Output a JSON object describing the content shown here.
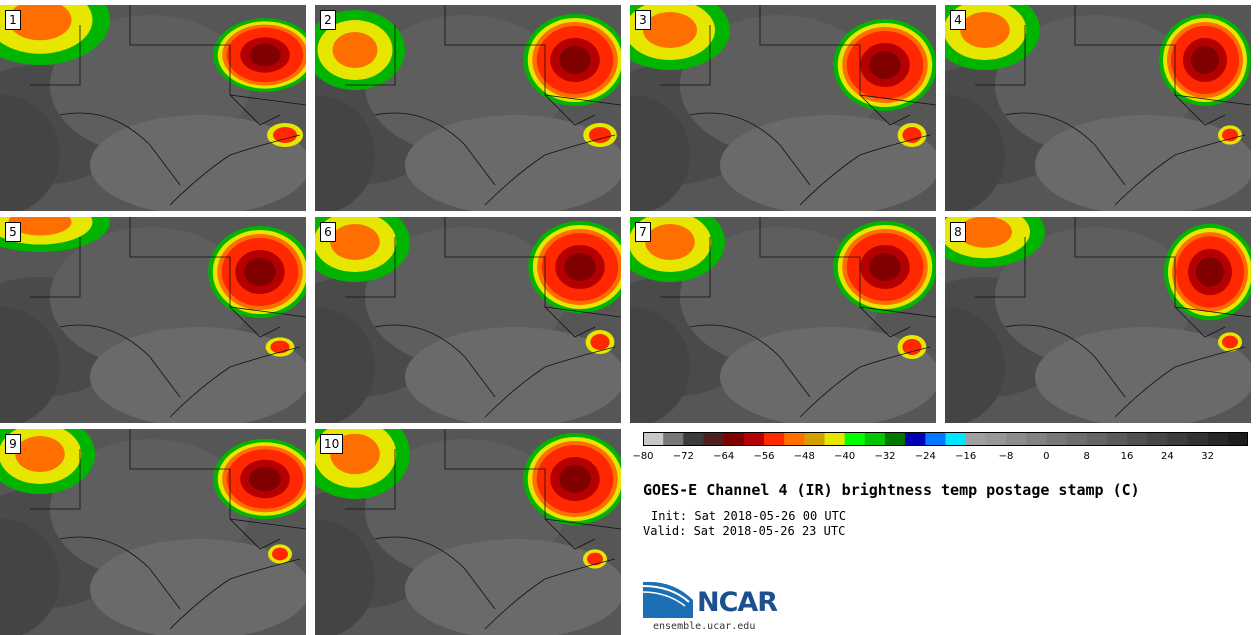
{
  "panels": [
    {
      "label": "1"
    },
    {
      "label": "2"
    },
    {
      "label": "3"
    },
    {
      "label": "4"
    },
    {
      "label": "5"
    },
    {
      "label": "6"
    },
    {
      "label": "7"
    },
    {
      "label": "8"
    },
    {
      "label": "9"
    },
    {
      "label": "10"
    }
  ],
  "colorbar": {
    "colors": [
      "#c8c8c8",
      "#787878",
      "#3c3c3c",
      "#502020",
      "#800000",
      "#b40000",
      "#ff2800",
      "#ff6e00",
      "#d2a000",
      "#e6e600",
      "#00ff00",
      "#00c800",
      "#007800",
      "#0000b4",
      "#0078ff",
      "#00e6ff",
      "#a0a0a0",
      "#989898",
      "#8c8c8c",
      "#828282",
      "#787878",
      "#6e6e6e",
      "#646464",
      "#5a5a5a",
      "#505050",
      "#464646",
      "#3c3c3c",
      "#323232",
      "#282828",
      "#1e1e1e"
    ],
    "ticks": [
      "−80",
      "−72",
      "−64",
      "−56",
      "−48",
      "−40",
      "−32",
      "−24",
      "−16",
      "−8",
      "0",
      "8",
      "16",
      "24",
      "32"
    ]
  },
  "title": "GOES-E Channel 4 (IR) brightness temp postage stamp (C)",
  "init": "Init: Sat 2018-05-26 00 UTC",
  "valid": "Valid: Sat 2018-05-26 23 UTC",
  "logo": {
    "text": "NCAR",
    "site": "ensemble.ucar.edu"
  }
}
